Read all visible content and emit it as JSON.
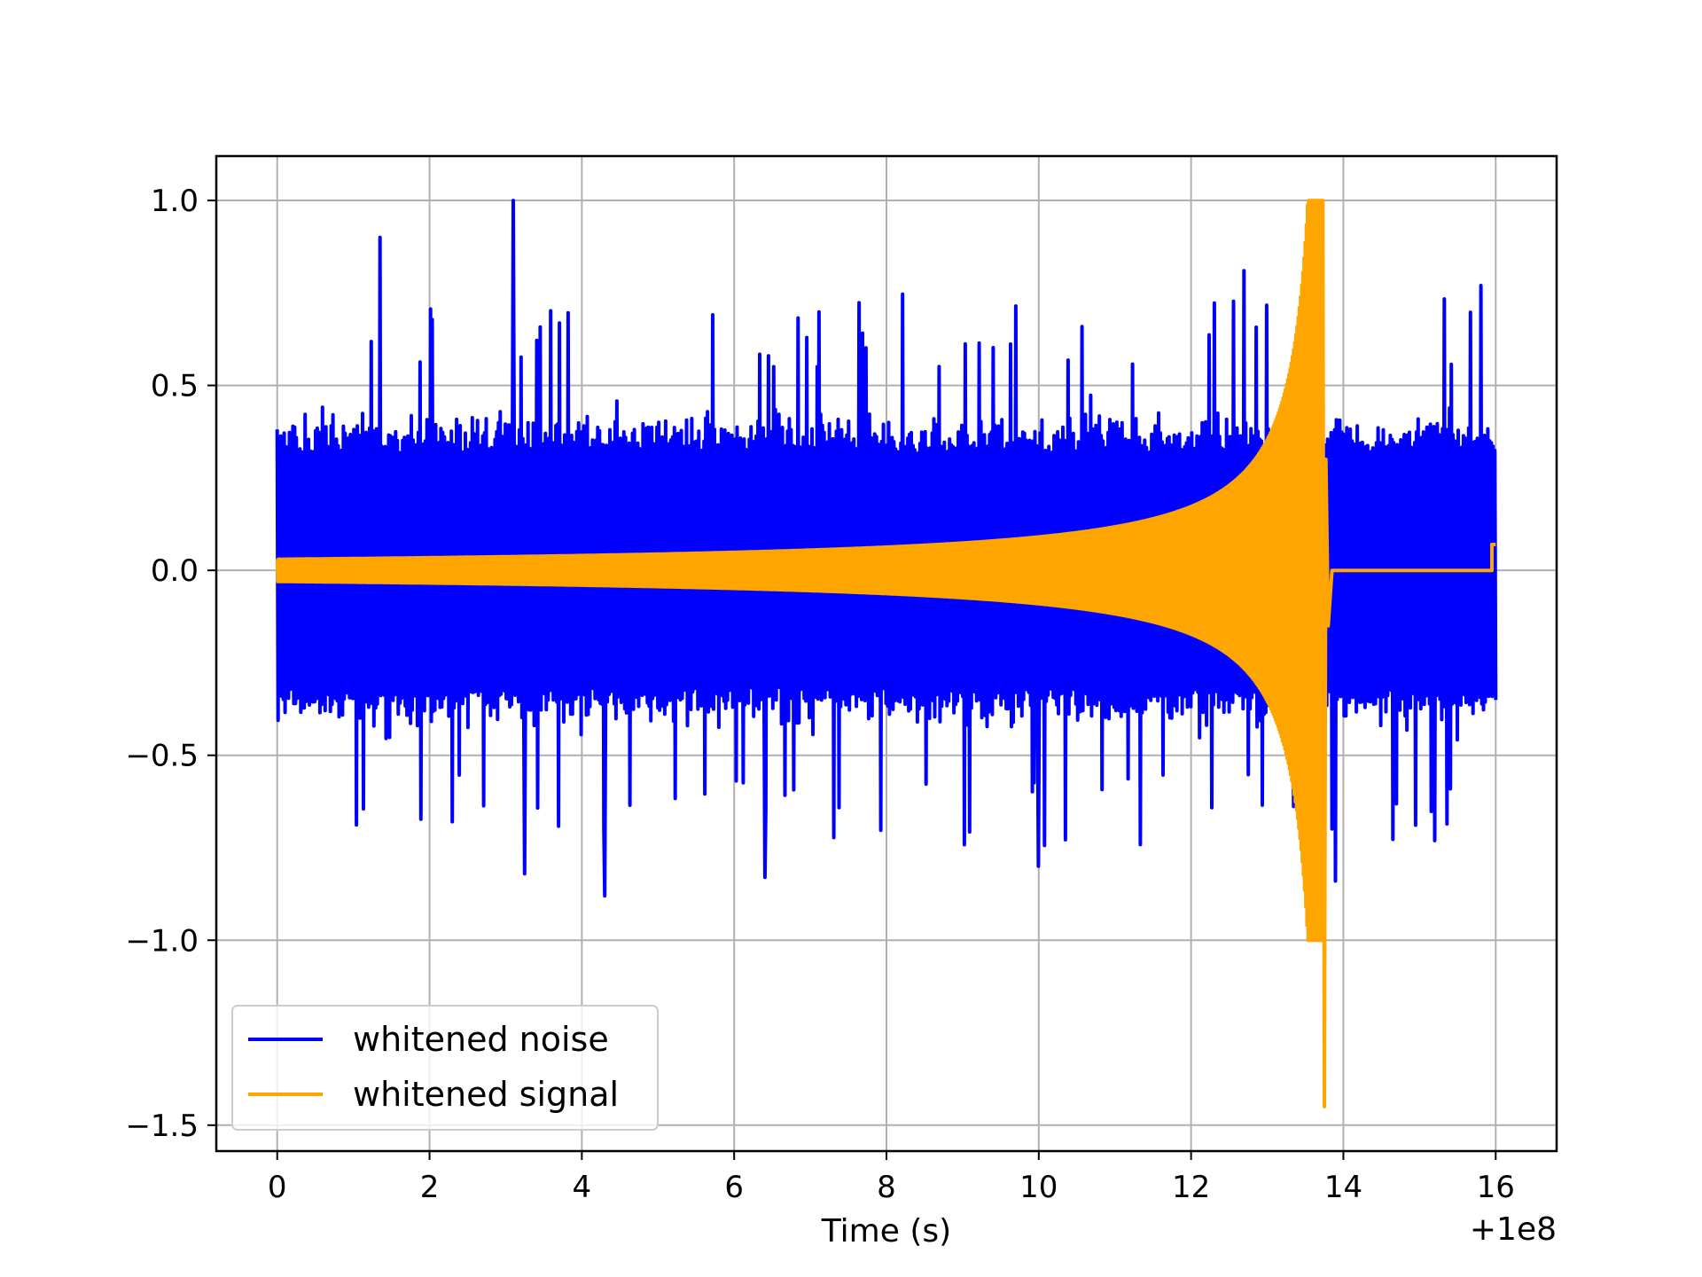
{
  "chart_data": {
    "type": "line",
    "xlabel": "Time (s)",
    "ylabel": "",
    "x_offset_label": "+1e8",
    "xlim": [
      -0.8,
      16.8
    ],
    "ylim": [
      -1.57,
      1.12
    ],
    "xticks": [
      0,
      2,
      4,
      6,
      8,
      10,
      12,
      14,
      16
    ],
    "xtick_labels": [
      "0",
      "2",
      "4",
      "6",
      "8",
      "10",
      "12",
      "14",
      "16"
    ],
    "yticks": [
      1.0,
      0.5,
      0.0,
      -0.5,
      -1.0,
      -1.5
    ],
    "ytick_labels": [
      "1.0",
      "0.5",
      "0.0",
      "−0.5",
      "−1.0",
      "−1.5"
    ],
    "grid": true,
    "legend_position": "lower-left",
    "series": [
      {
        "name": "whitened noise",
        "color": "#0000ff",
        "x_range": [
          0,
          16
        ],
        "typical_amplitude": 0.42,
        "spikes": [
          {
            "x": 1.35,
            "y": 0.9
          },
          {
            "x": 3.1,
            "y": 1.0
          },
          {
            "x": 4.3,
            "y": -0.88
          },
          {
            "x": 3.25,
            "y": -0.82
          },
          {
            "x": 12.7,
            "y": 0.81
          },
          {
            "x": 13.9,
            "y": -0.84
          },
          {
            "x": 15.8,
            "y": 0.77
          },
          {
            "x": 6.4,
            "y": -0.83
          },
          {
            "x": 10.0,
            "y": -0.8
          }
        ]
      },
      {
        "name": "whitened signal",
        "color": "#ffa500",
        "x_range": [
          0,
          16
        ],
        "envelope_start": 0.03,
        "merger_x": 13.75,
        "peak_max": 1.0,
        "peak_min": -1.45,
        "post_merger_end_value": 0.07
      }
    ]
  }
}
